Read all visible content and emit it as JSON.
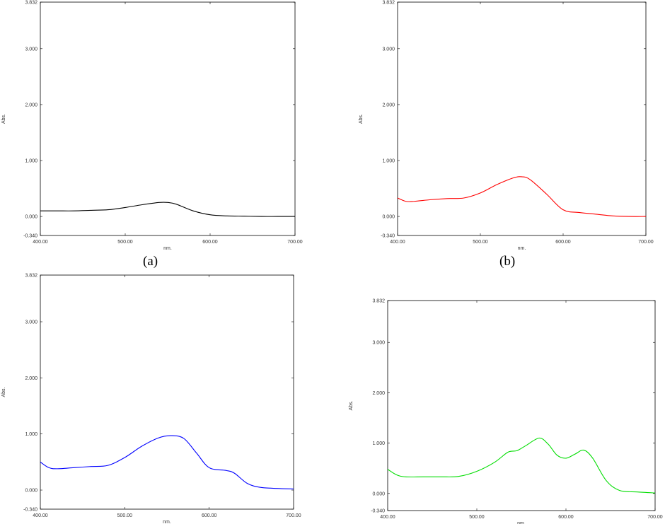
{
  "captions": {
    "a": "(a)",
    "b": "(b)"
  },
  "chart_data": [
    {
      "type": "line",
      "xlabel": "nm.",
      "ylabel": "Abs.",
      "xlim": [
        400.0,
        700.0
      ],
      "ylim": [
        -0.34,
        3.832
      ],
      "xticks": [
        "400.00",
        "500.00",
        "600.00",
        "700.00"
      ],
      "yticks": [
        "3.832",
        "3.000",
        "2.000",
        "1.000",
        "0.000",
        "-0.340"
      ],
      "grid": false,
      "color": "#000000",
      "series": [
        {
          "x": [
            400,
            420,
            440,
            460,
            480,
            500,
            520,
            540,
            550,
            560,
            580,
            600,
            620,
            640,
            660,
            680,
            700
          ],
          "y": [
            0.1,
            0.1,
            0.1,
            0.11,
            0.12,
            0.16,
            0.21,
            0.25,
            0.25,
            0.22,
            0.1,
            0.03,
            0.01,
            0.005,
            0.0,
            0.0,
            0.0
          ]
        }
      ]
    },
    {
      "type": "line",
      "xlabel": "nm.",
      "ylabel": "Abs.",
      "xlim": [
        400.0,
        700.0
      ],
      "ylim": [
        -0.34,
        3.832
      ],
      "xticks": [
        "400.00",
        "500.00",
        "600.00",
        "700.00"
      ],
      "yticks": [
        "3.832",
        "3.000",
        "2.000",
        "1.000",
        "0.000",
        "-0.340"
      ],
      "grid": false,
      "color": "#ff0000",
      "series": [
        {
          "x": [
            400,
            410,
            420,
            440,
            460,
            480,
            500,
            520,
            540,
            550,
            560,
            580,
            600,
            620,
            640,
            660,
            680,
            700
          ],
          "y": [
            0.33,
            0.27,
            0.27,
            0.3,
            0.32,
            0.33,
            0.42,
            0.57,
            0.69,
            0.71,
            0.66,
            0.4,
            0.12,
            0.07,
            0.04,
            0.01,
            0.0,
            0.0
          ]
        }
      ]
    },
    {
      "type": "line",
      "xlabel": "nm.",
      "ylabel": "Abs.",
      "xlim": [
        400.0,
        700.0
      ],
      "ylim": [
        -0.34,
        3.832
      ],
      "xticks": [
        "400.00",
        "500.00",
        "600.00",
        "700.00"
      ],
      "yticks": [
        "3.832",
        "3.000",
        "2.000",
        "1.000",
        "0.000",
        "-0.340"
      ],
      "grid": false,
      "color": "#0000ff",
      "series": [
        {
          "x": [
            400,
            410,
            420,
            440,
            460,
            480,
            500,
            520,
            540,
            555,
            570,
            585,
            600,
            620,
            630,
            645,
            660,
            680,
            700
          ],
          "y": [
            0.5,
            0.4,
            0.38,
            0.4,
            0.42,
            0.44,
            0.58,
            0.78,
            0.93,
            0.97,
            0.92,
            0.66,
            0.4,
            0.35,
            0.3,
            0.12,
            0.05,
            0.03,
            0.02
          ]
        }
      ]
    },
    {
      "type": "line",
      "xlabel": "nm.",
      "ylabel": "Abs.",
      "xlim": [
        400.0,
        700.0
      ],
      "ylim": [
        -0.34,
        3.832
      ],
      "xticks": [
        "400.00",
        "500.00",
        "600.00",
        "700.00"
      ],
      "yticks": [
        "3.832",
        "3.000",
        "2.000",
        "1.000",
        "0.000",
        "-0.340"
      ],
      "grid": false,
      "color": "#00dd00",
      "series": [
        {
          "x": [
            400,
            410,
            420,
            440,
            460,
            480,
            500,
            520,
            535,
            545,
            555,
            570,
            580,
            590,
            600,
            610,
            620,
            630,
            645,
            660,
            680,
            700
          ],
          "y": [
            0.48,
            0.37,
            0.33,
            0.33,
            0.33,
            0.34,
            0.44,
            0.62,
            0.82,
            0.85,
            0.95,
            1.1,
            0.98,
            0.76,
            0.7,
            0.78,
            0.86,
            0.7,
            0.26,
            0.06,
            0.03,
            0.01
          ]
        }
      ]
    }
  ]
}
